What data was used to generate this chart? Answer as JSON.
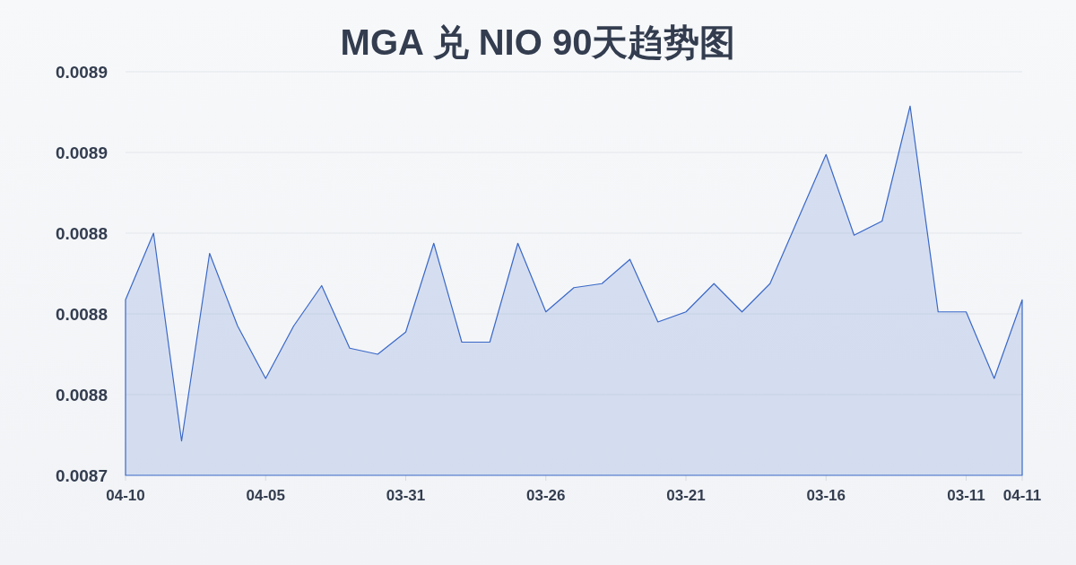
{
  "chart_data": {
    "type": "area",
    "title": "MGA 兑 NIO 90天趋势图",
    "categories": [
      "04-10",
      null,
      null,
      null,
      null,
      "04-05",
      null,
      null,
      null,
      null,
      "03-31",
      null,
      null,
      null,
      null,
      "03-26",
      null,
      null,
      null,
      null,
      "03-21",
      null,
      null,
      null,
      null,
      "03-16",
      null,
      null,
      null,
      null,
      "03-11",
      null,
      "04-11"
    ],
    "series": [
      {
        "color": "#3a68c8",
        "values": [
          0.008807,
          0.00884,
          0.008737,
          0.00883,
          0.008794,
          0.008768,
          0.008794,
          0.008814,
          0.008783,
          0.00878,
          0.008791,
          0.008835,
          0.008786,
          0.008786,
          0.008835,
          0.008801,
          0.008813,
          0.008815,
          0.008827,
          0.008796,
          0.008801,
          0.008815,
          0.008801,
          0.008815,
          0.008847,
          0.008879,
          0.008839,
          0.008846,
          0.008903,
          0.008801,
          0.008801,
          0.008768,
          0.008807
        ]
      }
    ],
    "ylim": [
      0.00872,
      0.00892
    ],
    "yticks": [
      {
        "value": 0.00872,
        "label": "0.0087"
      },
      {
        "value": 0.00876,
        "label": "0.0088"
      },
      {
        "value": 0.0088,
        "label": "0.0088"
      },
      {
        "value": 0.00884,
        "label": "0.0088"
      },
      {
        "value": 0.00888,
        "label": "0.0089"
      },
      {
        "value": 0.00892,
        "label": "0.0089"
      }
    ],
    "grid": "y"
  }
}
